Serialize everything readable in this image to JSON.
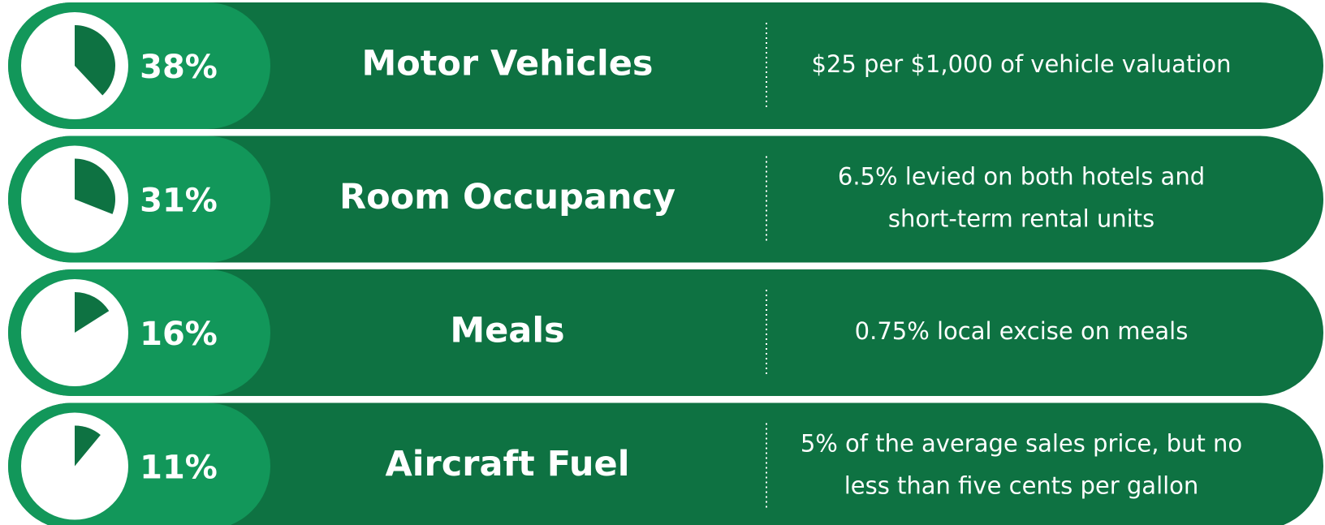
{
  "chart_data": {
    "type": "pie",
    "categories": [
      "Motor Vehicles",
      "Room Occupancy",
      "Meals",
      "Aircraft Fuel"
    ],
    "values": [
      38,
      31,
      16,
      11
    ],
    "value_labels": [
      "38%",
      "31%",
      "16%",
      "11%"
    ],
    "descriptions": [
      [
        "$25 per $1,000 of vehicle valuation"
      ],
      [
        "6.5% levied on both hotels and",
        "short-term rental units"
      ],
      [
        "0.75% local excise on meals"
      ],
      [
        "5% of the average sales price, but no",
        "less than five cents per gallon"
      ]
    ],
    "color": "#0e7242"
  }
}
